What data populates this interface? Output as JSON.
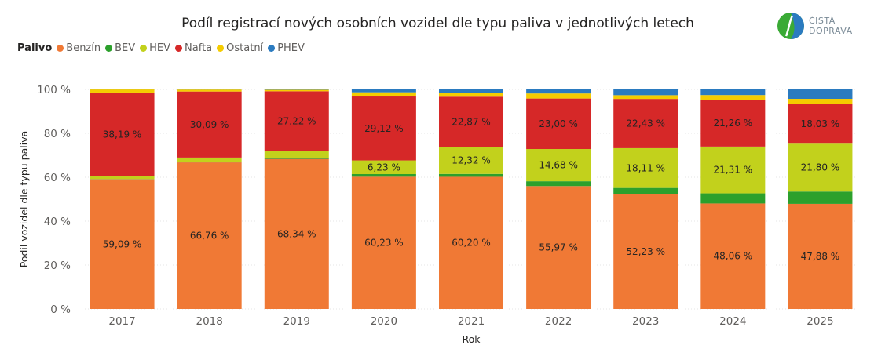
{
  "logo": {
    "line1": "ČISTÁ",
    "line2": "DOPRAVA",
    "colors": {
      "green": "#3aaa35",
      "blue": "#2b7bc0"
    }
  },
  "legend": {
    "title": "Palivo",
    "items": [
      {
        "label": "Benzín",
        "color": "#f07935"
      },
      {
        "label": "BEV",
        "color": "#2ca02c"
      },
      {
        "label": "HEV",
        "color": "#c2d11c"
      },
      {
        "label": "Nafta",
        "color": "#d62828"
      },
      {
        "label": "Ostatní",
        "color": "#f5cc00"
      },
      {
        "label": "PHEV",
        "color": "#2b7bc0"
      }
    ]
  },
  "chart_data": {
    "type": "bar",
    "stacked": true,
    "title": "Podíl registrací nových osobních vozidel dle typu paliva v jednotlivých letech",
    "xlabel": "Rok",
    "ylabel": "Podíl vozidel dle typu paliva",
    "ylim": [
      0,
      100
    ],
    "yticks": [
      "0 %",
      "20 %",
      "40 %",
      "60 %",
      "80 %",
      "100 %"
    ],
    "grid": true,
    "legend_position": "top-left",
    "categories": [
      "2017",
      "2018",
      "2019",
      "2020",
      "2021",
      "2022",
      "2023",
      "2024",
      "2025"
    ],
    "series": [
      {
        "name": "Benzín",
        "color": "#f07935",
        "values": [
          59.09,
          66.76,
          68.34,
          60.23,
          60.2,
          55.97,
          52.23,
          48.06,
          47.88
        ],
        "labels": [
          "59,09 %",
          "66,76 %",
          "68,34 %",
          "60,23 %",
          "60,20 %",
          "55,97 %",
          "52,23 %",
          "48,06 %",
          "47,88 %"
        ]
      },
      {
        "name": "BEV",
        "color": "#2ca02c",
        "values": [
          0.1,
          0.2,
          0.3,
          1.2,
          1.3,
          2.2,
          2.9,
          4.6,
          5.6
        ],
        "labels": [
          "",
          "",
          "",
          "",
          "",
          "",
          "",
          "",
          ""
        ]
      },
      {
        "name": "HEV",
        "color": "#c2d11c",
        "values": [
          1.2,
          2.0,
          3.3,
          6.23,
          12.32,
          14.68,
          18.11,
          21.31,
          21.8
        ],
        "labels": [
          "",
          "",
          "",
          "6,23 %",
          "12,32 %",
          "14,68 %",
          "18,11 %",
          "21,31 %",
          "21,80 %"
        ]
      },
      {
        "name": "Nafta",
        "color": "#d62828",
        "values": [
          38.19,
          30.09,
          27.22,
          29.12,
          22.87,
          23.0,
          22.43,
          21.26,
          18.03
        ],
        "labels": [
          "38,19 %",
          "30,09 %",
          "27,22 %",
          "29,12 %",
          "22,87 %",
          "23,00 %",
          "22,43 %",
          "21,26 %",
          "18,03 %"
        ]
      },
      {
        "name": "Ostatní",
        "color": "#f5cc00",
        "values": [
          1.4,
          0.9,
          0.7,
          1.9,
          1.6,
          2.3,
          1.7,
          2.2,
          2.4
        ],
        "labels": [
          "",
          "",
          "",
          "",
          "",
          "",
          "",
          "",
          ""
        ]
      },
      {
        "name": "PHEV",
        "color": "#2b7bc0",
        "values": [
          0.02,
          0.05,
          0.14,
          1.32,
          1.71,
          1.85,
          2.63,
          2.57,
          4.29
        ],
        "labels": [
          "",
          "",
          "",
          "",
          "",
          "",
          "",
          "",
          ""
        ]
      }
    ]
  }
}
